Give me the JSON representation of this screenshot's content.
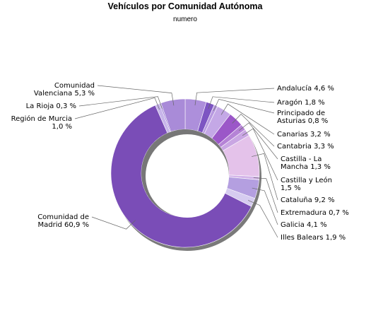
{
  "chart_data": {
    "type": "pie",
    "variant": "donut",
    "title": "Vehículos por Comunidad Autónoma",
    "subtitle": "numero",
    "slices": [
      {
        "label": "Andalucía 4,6 %",
        "value": 4.6,
        "color": "#ad8fdb"
      },
      {
        "label": "Aragón 1,8 %",
        "value": 1.8,
        "color": "#7d55c2"
      },
      {
        "label": "Principado de Asturias 0,8 %",
        "value": 0.8,
        "color": "#b89ae0"
      },
      {
        "label": "Canarias 3,2 %",
        "value": 3.2,
        "color": "#c4a8e6"
      },
      {
        "label": "Cantabria 3,3 %",
        "value": 3.3,
        "color": "#9b57c8"
      },
      {
        "label": "Castilla - La Mancha 1,3 %",
        "value": 1.3,
        "color": "#b583d6"
      },
      {
        "label": "Castilla y León 1,5 %",
        "value": 1.5,
        "color": "#c9a6e3"
      },
      {
        "label": "Cataluña 9,2 %",
        "value": 9.2,
        "color": "#e4c2ea"
      },
      {
        "label": "Extremadura 0,7 %",
        "value": 0.7,
        "color": "#d3b4e9"
      },
      {
        "label": "Galicia 4,1 %",
        "value": 4.1,
        "color": "#b49fe0"
      },
      {
        "label": "Illes Balears 1,9 %",
        "value": 1.9,
        "color": "#d6ccf0"
      },
      {
        "label": "Comunidad de Madrid 60,9 %",
        "value": 60.9,
        "color": "#7a4db7"
      },
      {
        "label": "Región de Murcia 1,0 %",
        "value": 1.0,
        "color": "#c7b5ea"
      },
      {
        "label": "La Rioja 0,3 %",
        "value": 0.3,
        "color": "#9a7ed3"
      },
      {
        "label": "Comunidad Valenciana 5,3 %",
        "value": 5.3,
        "color": "#a98bd8"
      }
    ]
  }
}
